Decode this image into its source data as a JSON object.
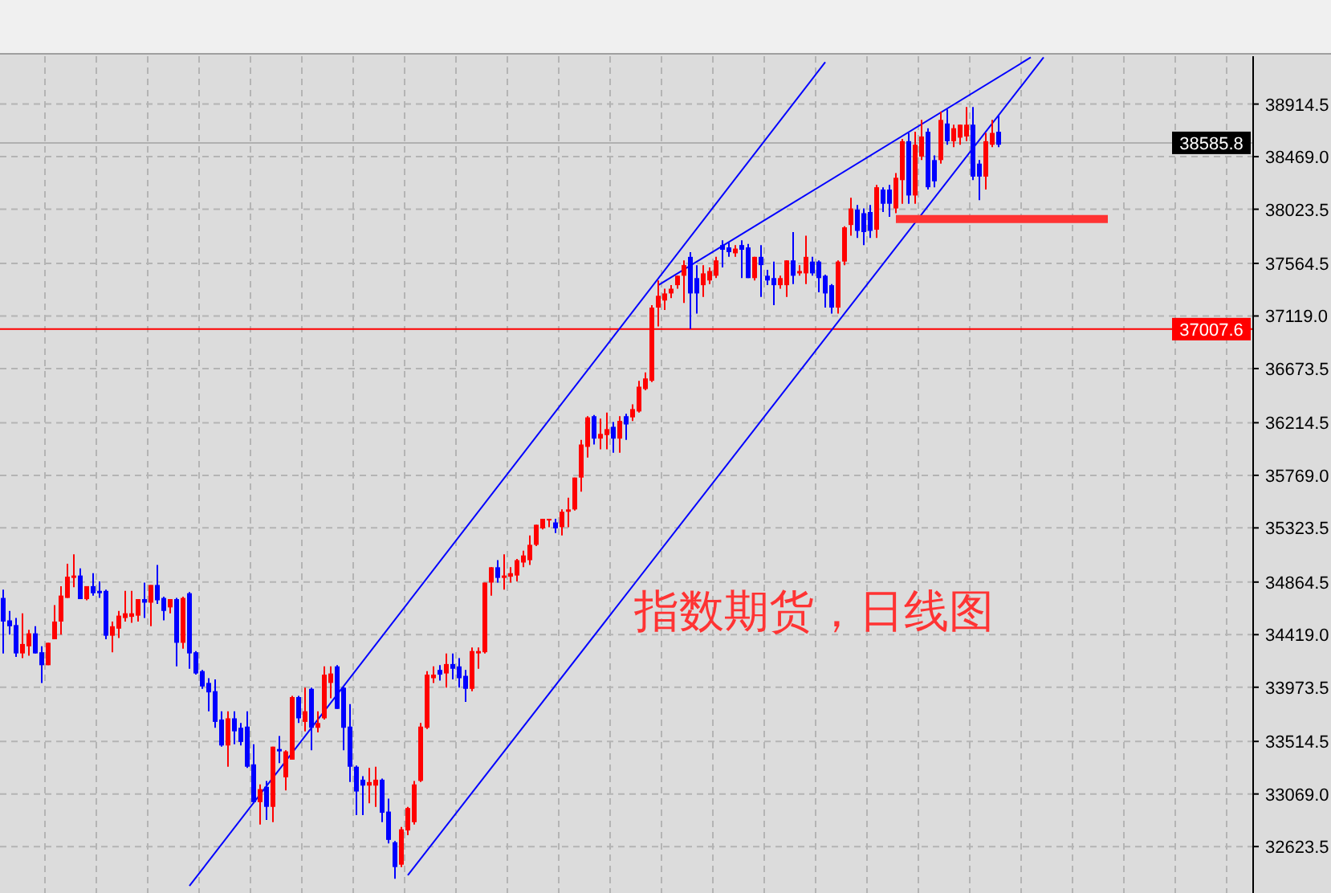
{
  "chart_data": {
    "type": "candlestick",
    "annotations": [
      "指数期货，日线图"
    ],
    "categories": [
      null,
      null,
      null,
      null,
      null,
      null,
      null,
      null,
      null,
      null,
      null,
      null,
      null,
      null,
      null,
      null,
      null,
      null,
      null,
      null,
      null,
      null,
      null,
      null,
      null,
      null,
      null,
      null,
      null,
      null,
      null,
      null,
      null,
      null,
      null,
      null,
      null,
      null,
      null,
      null,
      null,
      null,
      null,
      null,
      null,
      null,
      null,
      null,
      null,
      null,
      null,
      null,
      null,
      null,
      null,
      null,
      null,
      null,
      null,
      null,
      null,
      null,
      null,
      null,
      null,
      null,
      null,
      null,
      null,
      null,
      null,
      null,
      null,
      null,
      null,
      null,
      null,
      null,
      null,
      null,
      null,
      null,
      null,
      null,
      null,
      null,
      null,
      null,
      null,
      null,
      null,
      null,
      null,
      null,
      null,
      null,
      null,
      null,
      null,
      null,
      null,
      null,
      null,
      null,
      null,
      null,
      null,
      null,
      null,
      null,
      null,
      null,
      null,
      null,
      null,
      null,
      null,
      null,
      null,
      null,
      null,
      null,
      null,
      null,
      null,
      null,
      null,
      null,
      null,
      null,
      null,
      null,
      null,
      null,
      null,
      null,
      null,
      null,
      null,
      null,
      null,
      null,
      null,
      null,
      null,
      null,
      null,
      null,
      null,
      null,
      null,
      null,
      null,
      null,
      null,
      null,
      null,
      null,
      null,
      null,
      null,
      null,
      null,
      null,
      null,
      null,
      null,
      null,
      null,
      null,
      null,
      null,
      null,
      null,
      null,
      null,
      null,
      null,
      null,
      null,
      null,
      null,
      null,
      null,
      null,
      null,
      null,
      null,
      null,
      null,
      null,
      null,
      null,
      null,
      null
    ],
    "ohlc": [
      [
        34730,
        34800,
        34260,
        34530
      ],
      [
        34540,
        34620,
        34420,
        34490
      ],
      [
        34500,
        34560,
        34230,
        34260
      ],
      [
        34260,
        34600,
        34220,
        34340
      ],
      [
        34320,
        34460,
        34240,
        34430
      ],
      [
        34430,
        34490,
        34260,
        34260
      ],
      [
        34270,
        34320,
        34010,
        34160
      ],
      [
        34160,
        34350,
        34160,
        34350
      ],
      [
        34380,
        34670,
        34380,
        34530
      ],
      [
        34530,
        34830,
        34420,
        34750
      ],
      [
        34730,
        35020,
        34730,
        34910
      ],
      [
        34900,
        35100,
        34820,
        34920
      ],
      [
        34920,
        34980,
        34720,
        34720
      ],
      [
        34720,
        34830,
        34710,
        34830
      ],
      [
        34830,
        34940,
        34750,
        34770
      ],
      [
        34790,
        34870,
        34730,
        34770
      ],
      [
        34790,
        34800,
        34380,
        34410
      ],
      [
        34410,
        34530,
        34270,
        34490
      ],
      [
        34470,
        34620,
        34390,
        34580
      ],
      [
        34560,
        34790,
        34530,
        34600
      ],
      [
        34570,
        34790,
        34520,
        34600
      ],
      [
        34580,
        34720,
        34530,
        34720
      ],
      [
        34720,
        34860,
        34560,
        34690
      ],
      [
        34690,
        34840,
        34490,
        34840
      ],
      [
        34840,
        35010,
        34680,
        34710
      ],
      [
        34730,
        34740,
        34540,
        34620
      ],
      [
        34650,
        34720,
        34600,
        34720
      ],
      [
        34720,
        34730,
        34150,
        34350
      ],
      [
        34350,
        34740,
        34300,
        34730
      ],
      [
        34770,
        34780,
        34130,
        34260
      ],
      [
        34270,
        34280,
        34080,
        34090
      ],
      [
        34110,
        34120,
        33960,
        33980
      ],
      [
        34010,
        34050,
        33770,
        33930
      ],
      [
        33940,
        34040,
        33630,
        33680
      ],
      [
        33700,
        33770,
        33470,
        33480
      ],
      [
        33480,
        33770,
        33300,
        33710
      ],
      [
        33710,
        33770,
        33490,
        33600
      ],
      [
        33630,
        33670,
        33480,
        33510
      ],
      [
        33640,
        33770,
        33290,
        33300
      ],
      [
        33320,
        33490,
        32990,
        33000
      ],
      [
        33000,
        33150,
        32810,
        33110
      ],
      [
        33130,
        33180,
        32850,
        32960
      ],
      [
        32960,
        33470,
        32830,
        33470
      ],
      [
        33450,
        33560,
        33330,
        33430
      ],
      [
        33210,
        33440,
        33100,
        33430
      ],
      [
        33360,
        33900,
        33360,
        33890
      ],
      [
        33890,
        33900,
        33670,
        33710
      ],
      [
        33680,
        33970,
        33600,
        33770
      ],
      [
        33960,
        33970,
        33440,
        33630
      ],
      [
        33630,
        33770,
        33590,
        33670
      ],
      [
        33710,
        34150,
        33700,
        34080
      ],
      [
        34010,
        34150,
        33880,
        34090
      ],
      [
        34150,
        34160,
        33790,
        33790
      ],
      [
        33970,
        33980,
        33440,
        33630
      ],
      [
        33640,
        33830,
        33170,
        33300
      ],
      [
        33300,
        33310,
        32890,
        33090
      ],
      [
        33190,
        33220,
        32890,
        33140
      ],
      [
        33140,
        33290,
        32990,
        33170
      ],
      [
        33140,
        33300,
        32960,
        33190
      ],
      [
        33190,
        33200,
        32830,
        32910
      ],
      [
        32920,
        33030,
        32650,
        32680
      ],
      [
        32660,
        32670,
        32350,
        32450
      ],
      [
        32470,
        32790,
        32450,
        32770
      ],
      [
        32760,
        32960,
        32720,
        32950
      ],
      [
        32830,
        33180,
        32810,
        33150
      ],
      [
        33180,
        33670,
        33170,
        33640
      ],
      [
        33630,
        34110,
        33620,
        34080
      ],
      [
        34050,
        34150,
        34010,
        34080
      ],
      [
        34120,
        34160,
        34030,
        34080
      ],
      [
        34090,
        34260,
        33970,
        34170
      ],
      [
        34170,
        34260,
        34040,
        34130
      ],
      [
        34150,
        34220,
        33970,
        34050
      ],
      [
        34070,
        34120,
        33850,
        33960
      ],
      [
        33960,
        34310,
        33940,
        34280
      ],
      [
        34260,
        34310,
        34130,
        34280
      ],
      [
        34270,
        34860,
        34260,
        34860
      ],
      [
        34860,
        34990,
        34750,
        34990
      ],
      [
        34990,
        35050,
        34860,
        34900
      ],
      [
        34900,
        35100,
        34800,
        34920
      ],
      [
        34910,
        34990,
        34860,
        34940
      ],
      [
        34920,
        35060,
        34870,
        35050
      ],
      [
        35030,
        35130,
        34990,
        35090
      ],
      [
        35050,
        35260,
        35010,
        35180
      ],
      [
        35180,
        35350,
        35170,
        35350
      ],
      [
        35320,
        35400,
        35310,
        35400
      ],
      [
        35390,
        35400,
        35330,
        35400
      ],
      [
        35370,
        35400,
        35280,
        35320
      ],
      [
        35330,
        35480,
        35260,
        35460
      ],
      [
        35460,
        35580,
        35330,
        35480
      ],
      [
        35480,
        35750,
        35470,
        35750
      ],
      [
        35750,
        36070,
        35630,
        36030
      ],
      [
        36010,
        36270,
        35920,
        36260
      ],
      [
        36270,
        36280,
        36030,
        36080
      ],
      [
        36080,
        36250,
        35990,
        36120
      ],
      [
        36110,
        36300,
        35990,
        36160
      ],
      [
        36180,
        36220,
        35960,
        36080
      ],
      [
        36080,
        36270,
        35960,
        36230
      ],
      [
        36270,
        36290,
        36070,
        36200
      ],
      [
        36260,
        36370,
        36230,
        36330
      ],
      [
        36310,
        36570,
        36300,
        36520
      ],
      [
        36500,
        36640,
        36490,
        36590
      ],
      [
        36570,
        37210,
        36560,
        37190
      ],
      [
        37190,
        37420,
        37030,
        37290
      ],
      [
        37250,
        37350,
        37170,
        37310
      ],
      [
        37310,
        37380,
        37270,
        37350
      ],
      [
        37380,
        37460,
        37350,
        37460
      ],
      [
        37460,
        37590,
        37230,
        37550
      ],
      [
        37620,
        37660,
        37010,
        37310
      ],
      [
        37440,
        37550,
        37140,
        37310
      ],
      [
        37380,
        37550,
        37280,
        37480
      ],
      [
        37420,
        37530,
        37390,
        37500
      ],
      [
        37460,
        37620,
        37440,
        37590
      ],
      [
        37720,
        37760,
        37530,
        37680
      ],
      [
        37700,
        37740,
        37620,
        37660
      ],
      [
        37650,
        37720,
        37620,
        37690
      ],
      [
        37720,
        37760,
        37440,
        37680
      ],
      [
        37700,
        37730,
        37440,
        37440
      ],
      [
        37440,
        37620,
        37420,
        37620
      ],
      [
        37620,
        37720,
        37280,
        37550
      ],
      [
        37460,
        37510,
        37380,
        37420
      ],
      [
        37440,
        37580,
        37210,
        37380
      ],
      [
        37380,
        37460,
        37350,
        37440
      ],
      [
        37380,
        37590,
        37280,
        37590
      ],
      [
        37590,
        37830,
        37390,
        37460
      ],
      [
        37480,
        37550,
        37460,
        37500
      ],
      [
        37480,
        37800,
        37390,
        37620
      ],
      [
        37580,
        37620,
        37460,
        37480
      ],
      [
        37580,
        37590,
        37320,
        37440
      ],
      [
        37460,
        37470,
        37190,
        37310
      ],
      [
        37380,
        37390,
        37140,
        37190
      ],
      [
        37190,
        37590,
        37140,
        37580
      ],
      [
        37580,
        37880,
        37550,
        37870
      ],
      [
        37890,
        38120,
        37800,
        38030
      ],
      [
        38020,
        38060,
        37780,
        37840
      ],
      [
        37990,
        38030,
        37720,
        37830
      ],
      [
        38000,
        38060,
        37780,
        37840
      ],
      [
        37850,
        38230,
        37780,
        38210
      ],
      [
        38190,
        38210,
        38000,
        38070
      ],
      [
        38190,
        38230,
        37960,
        38070
      ],
      [
        38030,
        38330,
        37990,
        38290
      ],
      [
        38270,
        38620,
        38070,
        38600
      ],
      [
        38600,
        38670,
        38070,
        38140
      ],
      [
        38140,
        38680,
        38070,
        38570
      ],
      [
        38470,
        38780,
        38440,
        38640
      ],
      [
        38680,
        38710,
        38190,
        38210
      ],
      [
        38440,
        38480,
        38210,
        38260
      ],
      [
        38440,
        38850,
        38410,
        38780
      ],
      [
        38750,
        38870,
        38570,
        38600
      ],
      [
        38600,
        38740,
        38550,
        38710
      ],
      [
        38630,
        38740,
        38570,
        38740
      ],
      [
        38640,
        38890,
        38600,
        38740
      ],
      [
        38740,
        38890,
        38270,
        38300
      ],
      [
        38410,
        38440,
        38100,
        38300
      ],
      [
        38300,
        38670,
        38190,
        38600
      ],
      [
        38570,
        38780,
        38550,
        38670
      ],
      [
        38680,
        38820,
        38550,
        38570
      ],
      null,
      null,
      null,
      null,
      null,
      null,
      null,
      null,
      null,
      null,
      null,
      null,
      null,
      null,
      null,
      null,
      null,
      null,
      null,
      null,
      null,
      null,
      null,
      null,
      null,
      null,
      null,
      null,
      null,
      null,
      null,
      null,
      null,
      null,
      null,
      null,
      null,
      null,
      null
    ],
    "series": [
      {
        "type": "line",
        "color": "#0000ff",
        "values": [
          null,
          null,
          null,
          null,
          null,
          null,
          null,
          null,
          null,
          null,
          null,
          null,
          null,
          null,
          null,
          null,
          null,
          null,
          null,
          null,
          null,
          null,
          null,
          null,
          null,
          null,
          null,
          null,
          null,
          32290,
          null,
          null,
          null,
          null,
          null,
          null,
          null,
          null,
          null,
          null,
          null,
          null,
          null,
          null,
          null,
          null,
          null,
          null,
          null,
          null,
          null,
          null,
          null,
          null,
          null,
          null,
          null,
          null,
          null,
          null,
          null,
          null,
          null,
          null,
          null,
          null,
          null,
          null,
          null,
          null,
          null,
          null,
          null,
          null,
          null,
          null,
          null,
          null,
          null,
          null,
          null,
          null,
          null,
          null,
          null,
          null,
          null,
          null,
          null,
          null,
          null,
          null,
          null,
          null,
          null,
          null,
          null,
          null,
          null,
          null,
          null,
          null,
          null,
          null,
          null,
          null,
          null,
          null,
          null,
          null,
          null,
          null,
          null,
          null,
          null,
          null,
          null,
          null,
          null,
          null,
          null,
          null,
          null,
          null,
          null,
          null,
          null,
          null,
          39270,
          null,
          null,
          null,
          null,
          null,
          null,
          null,
          null,
          null,
          null,
          null,
          null,
          null,
          null,
          null,
          null,
          null,
          null,
          null,
          null,
          null,
          null,
          null,
          null,
          null,
          null,
          null,
          null,
          null,
          null,
          null,
          null,
          null,
          null,
          null,
          null,
          null,
          null,
          null,
          null,
          null,
          null,
          null,
          null,
          null,
          null,
          null,
          null,
          null,
          null,
          null,
          null,
          null,
          null,
          null,
          null,
          null,
          null,
          null,
          null,
          null,
          null,
          null,
          null,
          null,
          null
        ]
      },
      {
        "type": "line",
        "color": "#0000ff",
        "values": [
          null,
          null,
          null,
          null,
          null,
          null,
          null,
          null,
          null,
          null,
          null,
          null,
          null,
          null,
          null,
          null,
          null,
          null,
          null,
          null,
          null,
          null,
          null,
          null,
          null,
          null,
          null,
          null,
          null,
          null,
          null,
          null,
          null,
          null,
          null,
          null,
          null,
          null,
          null,
          null,
          null,
          null,
          null,
          null,
          null,
          null,
          null,
          null,
          null,
          null,
          null,
          null,
          null,
          null,
          null,
          null,
          null,
          null,
          null,
          null,
          null,
          null,
          null,
          32380,
          null,
          null,
          null,
          null,
          null,
          null,
          null,
          null,
          null,
          null,
          null,
          null,
          null,
          null,
          null,
          null,
          null,
          null,
          null,
          null,
          null,
          null,
          null,
          null,
          null,
          null,
          null,
          null,
          null,
          null,
          null,
          null,
          null,
          null,
          null,
          null,
          null,
          null,
          null,
          null,
          null,
          null,
          null,
          null,
          null,
          null,
          null,
          null,
          null,
          null,
          null,
          null,
          null,
          null,
          null,
          null,
          null,
          null,
          null,
          null,
          null,
          null,
          null,
          null,
          null,
          null,
          null,
          null,
          null,
          null,
          null,
          null,
          null,
          null,
          null,
          null,
          null,
          null,
          null,
          null,
          null,
          null,
          null,
          null,
          null,
          null,
          null,
          null,
          null,
          null,
          null,
          null,
          null,
          null,
          null,
          null,
          null,
          null,
          39310,
          null,
          null,
          null,
          null,
          null,
          null,
          null,
          null,
          null,
          null,
          null,
          null,
          null,
          null,
          null,
          null,
          null,
          null,
          null,
          null,
          null,
          null,
          null,
          null,
          null,
          null,
          null,
          null,
          null,
          null,
          null,
          null
        ]
      },
      {
        "type": "line",
        "color": "#0000ff",
        "values": [
          null,
          null,
          null,
          null,
          null,
          null,
          null,
          null,
          null,
          null,
          null,
          null,
          null,
          null,
          null,
          null,
          null,
          null,
          null,
          null,
          null,
          null,
          null,
          null,
          null,
          null,
          null,
          null,
          null,
          null,
          null,
          null,
          null,
          null,
          null,
          null,
          null,
          null,
          null,
          null,
          null,
          null,
          null,
          null,
          null,
          null,
          null,
          null,
          null,
          null,
          null,
          null,
          null,
          null,
          null,
          null,
          null,
          null,
          null,
          null,
          null,
          null,
          null,
          null,
          null,
          null,
          null,
          null,
          null,
          null,
          null,
          null,
          null,
          null,
          null,
          null,
          null,
          null,
          null,
          null,
          null,
          null,
          null,
          null,
          null,
          null,
          null,
          null,
          null,
          null,
          null,
          null,
          null,
          null,
          null,
          null,
          null,
          null,
          null,
          null,
          null,
          null,
          37380,
          null,
          null,
          null,
          null,
          null,
          null,
          null,
          null,
          null,
          null,
          null,
          null,
          null,
          null,
          null,
          null,
          null,
          null,
          null,
          null,
          null,
          null,
          null,
          null,
          null,
          null,
          null,
          null,
          null,
          null,
          null,
          null,
          null,
          null,
          null,
          null,
          null,
          null,
          null,
          null,
          null,
          null,
          null,
          null,
          null,
          null,
          null,
          null,
          null,
          null,
          null,
          null,
          null,
          null,
          null,
          null,
          null,
          39310,
          null,
          null,
          null,
          null,
          null,
          null,
          null,
          null,
          null,
          null,
          null,
          null,
          null,
          null,
          null,
          null,
          null,
          null,
          null,
          null,
          null,
          null,
          null,
          null,
          null,
          null,
          null,
          null,
          null,
          null,
          null,
          null,
          null,
          null
        ]
      },
      {
        "type": "line",
        "color": "#ff3333",
        "values": [
          null,
          null,
          null,
          null,
          null,
          null,
          null,
          null,
          null,
          null,
          null,
          null,
          null,
          null,
          null,
          null,
          null,
          null,
          null,
          null,
          null,
          null,
          null,
          null,
          null,
          null,
          null,
          null,
          null,
          null,
          null,
          null,
          null,
          null,
          null,
          null,
          null,
          null,
          null,
          null,
          null,
          null,
          null,
          null,
          null,
          null,
          null,
          null,
          null,
          null,
          null,
          null,
          null,
          null,
          null,
          null,
          null,
          null,
          null,
          null,
          null,
          null,
          null,
          null,
          null,
          null,
          null,
          null,
          null,
          null,
          null,
          null,
          null,
          null,
          null,
          null,
          null,
          null,
          null,
          null,
          null,
          null,
          null,
          null,
          null,
          null,
          null,
          null,
          null,
          null,
          null,
          null,
          null,
          null,
          null,
          null,
          null,
          null,
          null,
          null,
          null,
          null,
          null,
          null,
          null,
          null,
          null,
          null,
          null,
          null,
          null,
          null,
          null,
          null,
          null,
          null,
          null,
          null,
          null,
          null,
          null,
          null,
          null,
          null,
          null,
          null,
          null,
          null,
          null,
          null,
          null,
          null,
          null,
          null,
          null,
          null,
          null,
          null,
          null,
          37940,
          null,
          null,
          null,
          null,
          null,
          null,
          null,
          null,
          null,
          null,
          null,
          null,
          null,
          null,
          null,
          null,
          null,
          null,
          null,
          null,
          null,
          null,
          null,
          null,
          null,
          null,
          null,
          null,
          null,
          null,
          null,
          null,
          37940,
          null,
          null,
          null,
          null,
          null,
          null,
          null,
          null,
          null,
          null,
          null,
          null,
          null,
          null,
          null,
          null,
          null,
          null,
          null,
          null,
          null,
          null
        ]
      }
    ],
    "ref_lines": [
      {
        "axis": "y",
        "value": 37007.6,
        "label": "37007.6",
        "color": "#ff0000"
      },
      {
        "axis": "y",
        "value": 38585.8,
        "label": "38585.8",
        "color": "#b0b0b0"
      }
    ],
    "ylim": [
      32230,
      39320
    ],
    "yticks": [
      {
        "value": 38914.5,
        "label": "38914.5"
      },
      {
        "value": 38469.0,
        "label": "38469.0"
      },
      {
        "value": 38023.5,
        "label": "38023.5"
      },
      {
        "value": 37564.5,
        "label": "37564.5"
      },
      {
        "value": 37119.0,
        "label": "37119.0"
      },
      {
        "value": 36673.5,
        "label": "36673.5"
      },
      {
        "value": 36214.5,
        "label": "36214.5"
      },
      {
        "value": 35769.0,
        "label": "35769.0"
      },
      {
        "value": 35323.5,
        "label": "35323.5"
      },
      {
        "value": 34864.5,
        "label": "34864.5"
      },
      {
        "value": 34419.0,
        "label": "34419.0"
      },
      {
        "value": 33973.5,
        "label": "33973.5"
      },
      {
        "value": 33514.5,
        "label": "33514.5"
      },
      {
        "value": 33069.0,
        "label": "33069.0"
      },
      {
        "value": 32623.5,
        "label": "32623.5"
      }
    ],
    "grid": true,
    "tick_labels": "y"
  }
}
